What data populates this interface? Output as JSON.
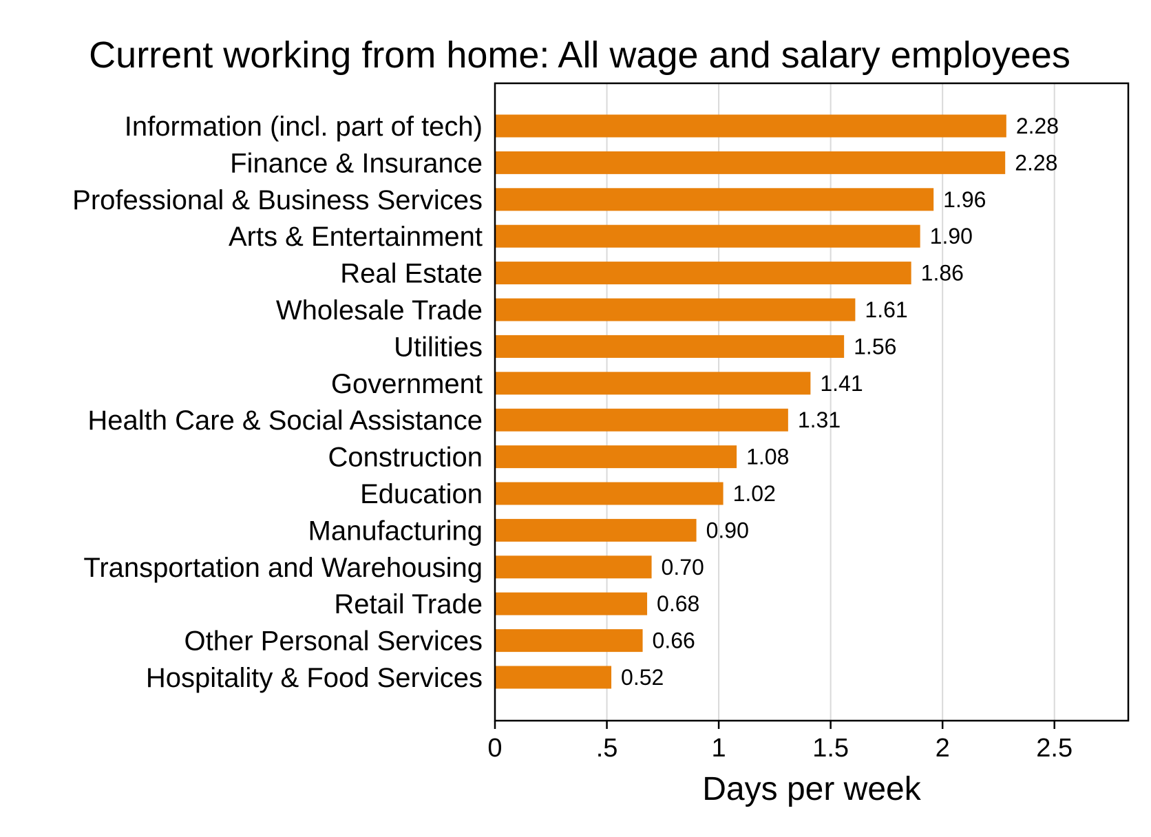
{
  "chart_data": {
    "type": "bar",
    "orientation": "horizontal",
    "title": "Current working from home: All wage and salary employees",
    "xlabel": "Days per week",
    "ylabel": "",
    "xlim": [
      0,
      2.83
    ],
    "grid": true,
    "bar_color": "#E8800A",
    "xticks": [
      {
        "value": 0,
        "label": "0"
      },
      {
        "value": 0.5,
        "label": ".5"
      },
      {
        "value": 1,
        "label": "1"
      },
      {
        "value": 1.5,
        "label": "1.5"
      },
      {
        "value": 2,
        "label": "2"
      },
      {
        "value": 2.5,
        "label": "2.5"
      }
    ],
    "categories": [
      "Information (incl. part of tech)",
      "Finance & Insurance",
      "Professional & Business Services",
      "Arts & Entertainment",
      "Real Estate",
      "Wholesale Trade",
      "Utilities",
      "Government",
      "Health Care & Social Assistance",
      "Construction",
      "Education",
      "Manufacturing",
      "Transportation and Warehousing",
      "Retail Trade",
      "Other Personal Services",
      "Hospitality & Food Services"
    ],
    "values": [
      2.285,
      2.28,
      1.96,
      1.9,
      1.86,
      1.61,
      1.56,
      1.41,
      1.31,
      1.08,
      1.02,
      0.9,
      0.7,
      0.68,
      0.66,
      0.52
    ],
    "value_labels": [
      "2.28",
      "2.28",
      "1.96",
      "1.90",
      "1.86",
      "1.61",
      "1.56",
      "1.41",
      "1.31",
      "1.08",
      "1.02",
      "0.90",
      "0.70",
      "0.68",
      "0.66",
      "0.52"
    ]
  }
}
